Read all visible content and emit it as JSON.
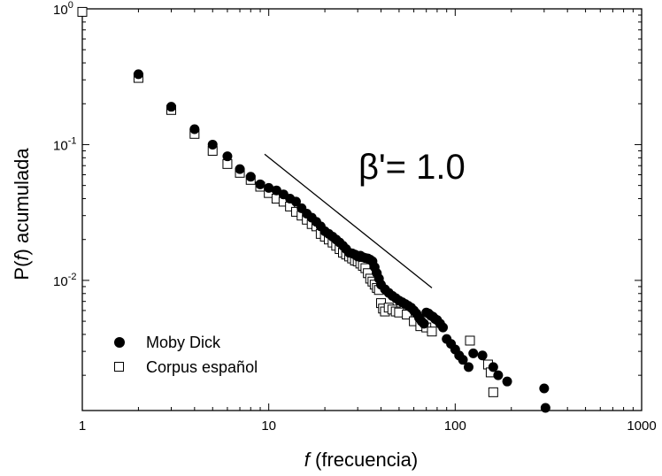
{
  "chart_data": {
    "type": "scatter",
    "xscale": "log",
    "yscale": "log",
    "xlim": [
      1,
      1000
    ],
    "ylim": [
      0.0011,
      1
    ],
    "xlabel_italic": "f",
    "xlabel_rest": " (frecuencia)",
    "ylabel_pre": "P(",
    "ylabel_italic": "f",
    "ylabel_post": ") acumulada",
    "x_ticks": [
      {
        "value": 1,
        "label": "1"
      },
      {
        "value": 10,
        "label": "10"
      },
      {
        "value": 100,
        "label": "100"
      },
      {
        "value": 1000,
        "label": "1000"
      }
    ],
    "y_ticks": [
      {
        "value": 1,
        "base": "10",
        "exp": "0"
      },
      {
        "value": 0.1,
        "base": "10",
        "exp": "-1"
      },
      {
        "value": 0.01,
        "base": "10",
        "exp": "-2"
      }
    ],
    "legend_position": "bottom-left",
    "series": [
      {
        "name": "Moby Dick",
        "marker": "filled-circle",
        "x": [
          2,
          3,
          4,
          5,
          6,
          7,
          8,
          9,
          10,
          11,
          12,
          13,
          14,
          15,
          16,
          17,
          18,
          19,
          20,
          21,
          22,
          23,
          24,
          25,
          26,
          27,
          28,
          29,
          30,
          31,
          32,
          33,
          34,
          35,
          36,
          37,
          38,
          39,
          40,
          42,
          44,
          46,
          48,
          50,
          52,
          54,
          56,
          58,
          60,
          62,
          64,
          66,
          68,
          70,
          72,
          74,
          76,
          78,
          80,
          83,
          86,
          90,
          95,
          100,
          105,
          110,
          118,
          125,
          140,
          160,
          170,
          190,
          300,
          305
        ],
        "y": [
          0.33,
          0.19,
          0.13,
          0.1,
          0.082,
          0.066,
          0.058,
          0.051,
          0.048,
          0.046,
          0.043,
          0.04,
          0.038,
          0.034,
          0.031,
          0.029,
          0.027,
          0.025,
          0.023,
          0.022,
          0.021,
          0.02,
          0.019,
          0.018,
          0.017,
          0.016,
          0.0158,
          0.0155,
          0.015,
          0.0152,
          0.0148,
          0.0146,
          0.0145,
          0.0142,
          0.0138,
          0.0125,
          0.0113,
          0.0103,
          0.0093,
          0.0086,
          0.0081,
          0.0077,
          0.0074,
          0.0071,
          0.0069,
          0.0067,
          0.0065,
          0.0063,
          0.006,
          0.0057,
          0.0053,
          0.005,
          0.0048,
          0.0058,
          0.0057,
          0.0055,
          0.0054,
          0.0052,
          0.0051,
          0.0048,
          0.0045,
          0.0037,
          0.0034,
          0.0031,
          0.0028,
          0.0026,
          0.0023,
          0.0029,
          0.0028,
          0.0023,
          0.002,
          0.0018,
          0.0016,
          0.00115
        ]
      },
      {
        "name": "Corpus español",
        "marker": "open-square",
        "x": [
          1,
          2,
          3,
          4,
          5,
          6,
          7,
          8,
          9,
          10,
          11,
          12,
          13,
          14,
          15,
          16,
          17,
          18,
          19,
          20,
          21,
          22,
          23,
          24,
          25,
          26,
          27,
          28,
          29,
          30,
          31,
          32,
          33,
          34,
          35,
          36,
          37,
          38,
          39,
          40,
          41,
          42,
          44,
          46,
          48,
          50,
          55,
          60,
          65,
          70,
          75,
          120,
          150,
          155,
          160
        ],
        "y": [
          0.95,
          0.31,
          0.18,
          0.12,
          0.09,
          0.072,
          0.062,
          0.055,
          0.049,
          0.044,
          0.04,
          0.038,
          0.035,
          0.032,
          0.03,
          0.028,
          0.026,
          0.025,
          0.022,
          0.021,
          0.02,
          0.019,
          0.018,
          0.017,
          0.016,
          0.0155,
          0.015,
          0.0145,
          0.014,
          0.0138,
          0.0133,
          0.0128,
          0.0123,
          0.0113,
          0.0103,
          0.0098,
          0.0093,
          0.0088,
          0.0085,
          0.0068,
          0.0062,
          0.0059,
          0.0063,
          0.0061,
          0.0059,
          0.0058,
          0.0056,
          0.005,
          0.0046,
          0.0045,
          0.0042,
          0.0036,
          0.0024,
          0.0021,
          0.0015
        ]
      }
    ],
    "annotation": {
      "text": "β'= 1.0",
      "line": {
        "x": [
          9.5,
          75
        ],
        "y": [
          0.085,
          0.0088
        ]
      }
    }
  }
}
